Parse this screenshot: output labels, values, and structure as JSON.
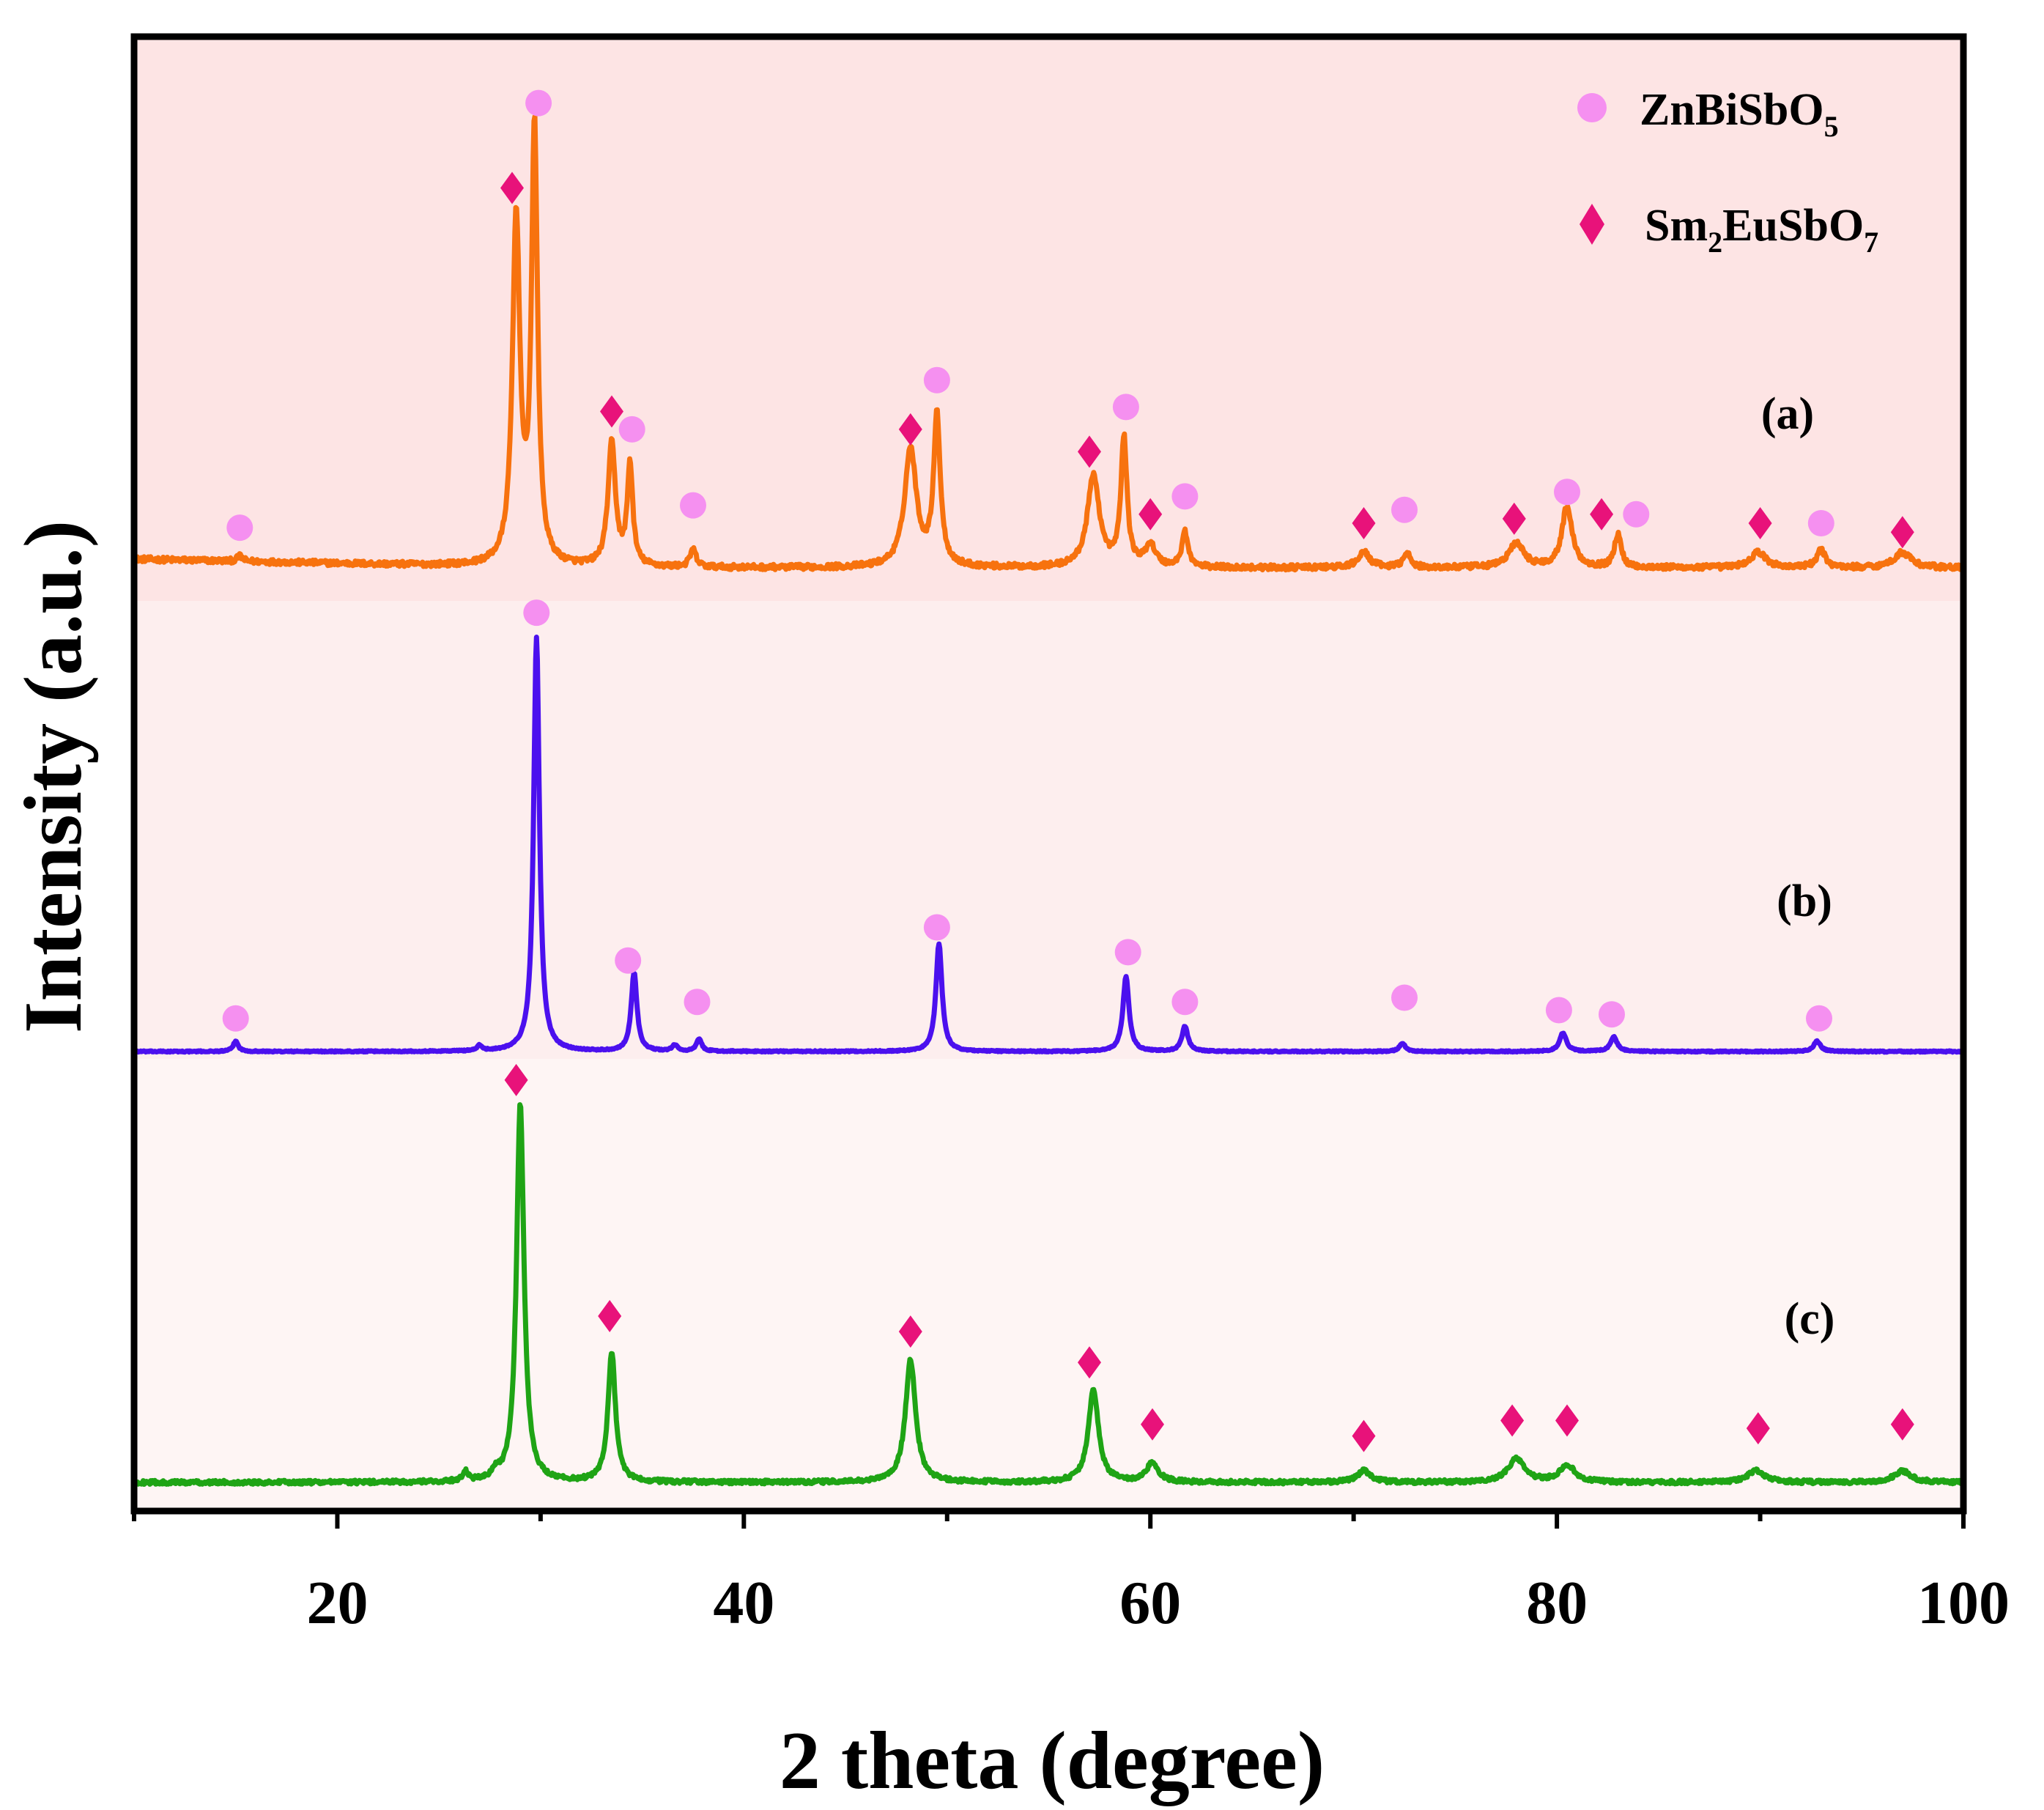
{
  "chart_data": {
    "type": "line",
    "title": "",
    "xlabel": "2 theta (degree)",
    "ylabel": "Intensity (a.u.)",
    "xlim": [
      10,
      100
    ],
    "x_ticks": [
      20,
      40,
      60,
      80,
      100
    ],
    "y_ticks": [],
    "grid": false,
    "legend_position": "top-right",
    "legend": [
      {
        "marker": "circle",
        "color": "#f590f0",
        "label": "ZnBiSbO",
        "subscript": "5"
      },
      {
        "marker": "diamond",
        "color": "#e8127a",
        "label": "Sm",
        "subscript": "2",
        "label2": "EuSbO",
        "subscript2": "7"
      }
    ],
    "background_bands": [
      {
        "label": "(a)",
        "color": "#fde4e4"
      },
      {
        "label": "(b)",
        "color": "#fdeeee"
      },
      {
        "label": "(c)",
        "color": "#fef5f4"
      }
    ],
    "series": [
      {
        "name": "(a)",
        "color": "#f7720e",
        "baseline": 0.02,
        "amplitude": 0.98,
        "noise": 0.012,
        "peaks": [
          [
            15.2,
            0.012,
            0.15
          ],
          [
            28.8,
            0.79,
            0.22
          ],
          [
            29.7,
            0.99,
            0.18
          ],
          [
            33.5,
            0.28,
            0.22
          ],
          [
            34.4,
            0.23,
            0.16
          ],
          [
            37.5,
            0.04,
            0.18
          ],
          [
            48.2,
            0.27,
            0.35
          ],
          [
            49.5,
            0.34,
            0.2
          ],
          [
            57.2,
            0.21,
            0.35
          ],
          [
            58.7,
            0.29,
            0.18
          ],
          [
            60.0,
            0.05,
            0.3
          ],
          [
            61.7,
            0.08,
            0.18
          ],
          [
            70.5,
            0.035,
            0.35
          ],
          [
            72.6,
            0.035,
            0.2
          ],
          [
            78.0,
            0.055,
            0.45
          ],
          [
            80.5,
            0.14,
            0.3
          ],
          [
            83.0,
            0.075,
            0.2
          ],
          [
            89.9,
            0.035,
            0.45
          ],
          [
            93.0,
            0.04,
            0.25
          ],
          [
            97.0,
            0.035,
            0.5
          ]
        ]
      },
      {
        "name": "(b)",
        "color": "#4b10ee",
        "baseline": 0.0,
        "amplitude": 1.0,
        "noise": 0.003,
        "peaks": [
          [
            15.0,
            0.025,
            0.15
          ],
          [
            27.0,
            0.012,
            0.15
          ],
          [
            29.8,
            1.0,
            0.17
          ],
          [
            34.6,
            0.19,
            0.17
          ],
          [
            36.6,
            0.015,
            0.15
          ],
          [
            37.8,
            0.03,
            0.15
          ],
          [
            49.6,
            0.26,
            0.18
          ],
          [
            58.8,
            0.18,
            0.18
          ],
          [
            61.7,
            0.06,
            0.18
          ],
          [
            72.4,
            0.02,
            0.18
          ],
          [
            80.3,
            0.045,
            0.2
          ],
          [
            82.8,
            0.035,
            0.2
          ],
          [
            92.8,
            0.025,
            0.2
          ]
        ]
      },
      {
        "name": "(c)",
        "color": "#1fa415",
        "baseline": 0.0,
        "amplitude": 0.99,
        "noise": 0.01,
        "peaks": [
          [
            26.3,
            0.025,
            0.15
          ],
          [
            27.8,
            0.02,
            0.15
          ],
          [
            29.0,
            0.99,
            0.22
          ],
          [
            33.5,
            0.34,
            0.22
          ],
          [
            48.2,
            0.32,
            0.3
          ],
          [
            57.2,
            0.24,
            0.3
          ],
          [
            60.1,
            0.05,
            0.35
          ],
          [
            70.5,
            0.03,
            0.4
          ],
          [
            78.0,
            0.06,
            0.5
          ],
          [
            80.5,
            0.045,
            0.45
          ],
          [
            89.8,
            0.03,
            0.5
          ],
          [
            97.0,
            0.03,
            0.5
          ]
        ]
      }
    ],
    "markers": {
      "(a)": {
        "circle": [
          [
            15.2,
            0.09
          ],
          [
            29.9,
            1.04
          ],
          [
            34.5,
            0.31
          ],
          [
            37.5,
            0.14
          ],
          [
            49.5,
            0.42
          ],
          [
            58.8,
            0.36
          ],
          [
            61.7,
            0.16
          ],
          [
            72.5,
            0.13
          ],
          [
            80.5,
            0.17
          ],
          [
            83.9,
            0.12
          ],
          [
            93.0,
            0.1
          ]
        ],
        "diamond": [
          [
            28.6,
            0.85
          ],
          [
            33.5,
            0.35
          ],
          [
            48.2,
            0.31
          ],
          [
            57.0,
            0.26
          ],
          [
            60.0,
            0.12
          ],
          [
            70.5,
            0.1
          ],
          [
            77.9,
            0.11
          ],
          [
            82.2,
            0.12
          ],
          [
            90.0,
            0.1
          ],
          [
            97.0,
            0.08
          ]
        ]
      },
      "(b)": {
        "circle": [
          [
            15.0,
            0.08
          ],
          [
            29.8,
            1.06
          ],
          [
            34.3,
            0.22
          ],
          [
            37.7,
            0.12
          ],
          [
            49.5,
            0.3
          ],
          [
            58.9,
            0.24
          ],
          [
            61.7,
            0.12
          ],
          [
            72.5,
            0.13
          ],
          [
            80.1,
            0.1
          ],
          [
            82.7,
            0.09
          ],
          [
            92.9,
            0.08
          ]
        ]
      },
      "(c)": {
        "diamond": [
          [
            28.8,
            1.04
          ],
          [
            33.4,
            0.43
          ],
          [
            48.2,
            0.39
          ],
          [
            57.0,
            0.31
          ],
          [
            60.1,
            0.15
          ],
          [
            70.5,
            0.12
          ],
          [
            77.8,
            0.16
          ],
          [
            80.5,
            0.16
          ],
          [
            89.9,
            0.14
          ],
          [
            97.0,
            0.15
          ]
        ]
      }
    },
    "annotations": [
      "(a)",
      "(b)",
      "(c)"
    ]
  }
}
